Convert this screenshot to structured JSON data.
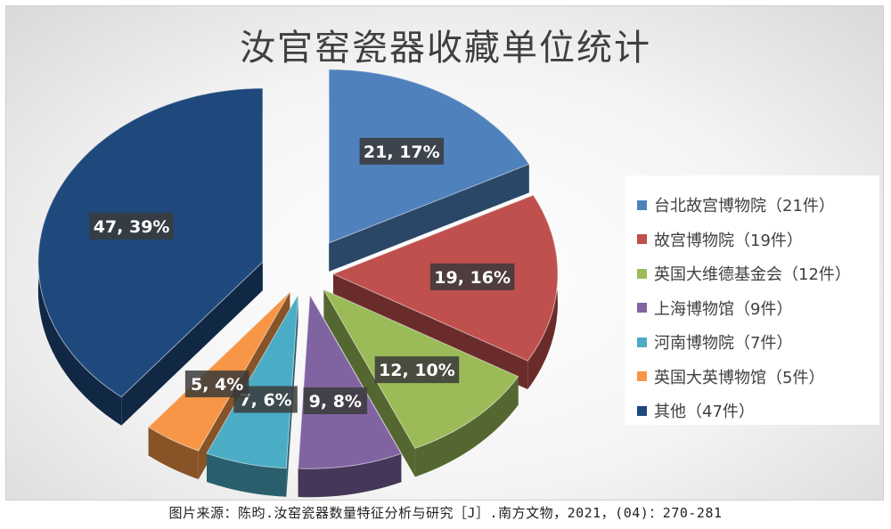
{
  "chart_data": {
    "type": "pie",
    "title": "汝官窑瓷器收藏单位统计",
    "categories": [
      "台北故宫博物院",
      "故宫博物院",
      "英国大维德基金会",
      "上海博物馆",
      "河南博物院",
      "英国大英博物馆",
      "其他"
    ],
    "values": [
      21,
      19,
      12,
      9,
      7,
      5,
      47
    ],
    "percentages": [
      17,
      16,
      10,
      8,
      6,
      4,
      39
    ],
    "data_labels": [
      "21, 17%",
      "19, 16%",
      "12, 10%",
      "9, 8%",
      "7, 6%",
      "5, 4%",
      "47, 39%"
    ],
    "legend_entries": [
      "台北故宫博物院（21件）",
      "故宫博物院（19件）",
      "英国大维德基金会（12件）",
      "上海博物馆（9件）",
      "河南博物院（7件）",
      "英国大英博物馆（5件）",
      "其他（47件）"
    ],
    "colors": [
      "#4f81bd",
      "#c0504d",
      "#9bbb59",
      "#8064a2",
      "#4bacc6",
      "#f79646",
      "#1f497d"
    ],
    "legend_position": "right",
    "style": "exploded-3d"
  },
  "source_note": "图片来源：陈昀.汝窑瓷器数量特征分析与研究［J］.南方文物，2021，(04)：270-281"
}
